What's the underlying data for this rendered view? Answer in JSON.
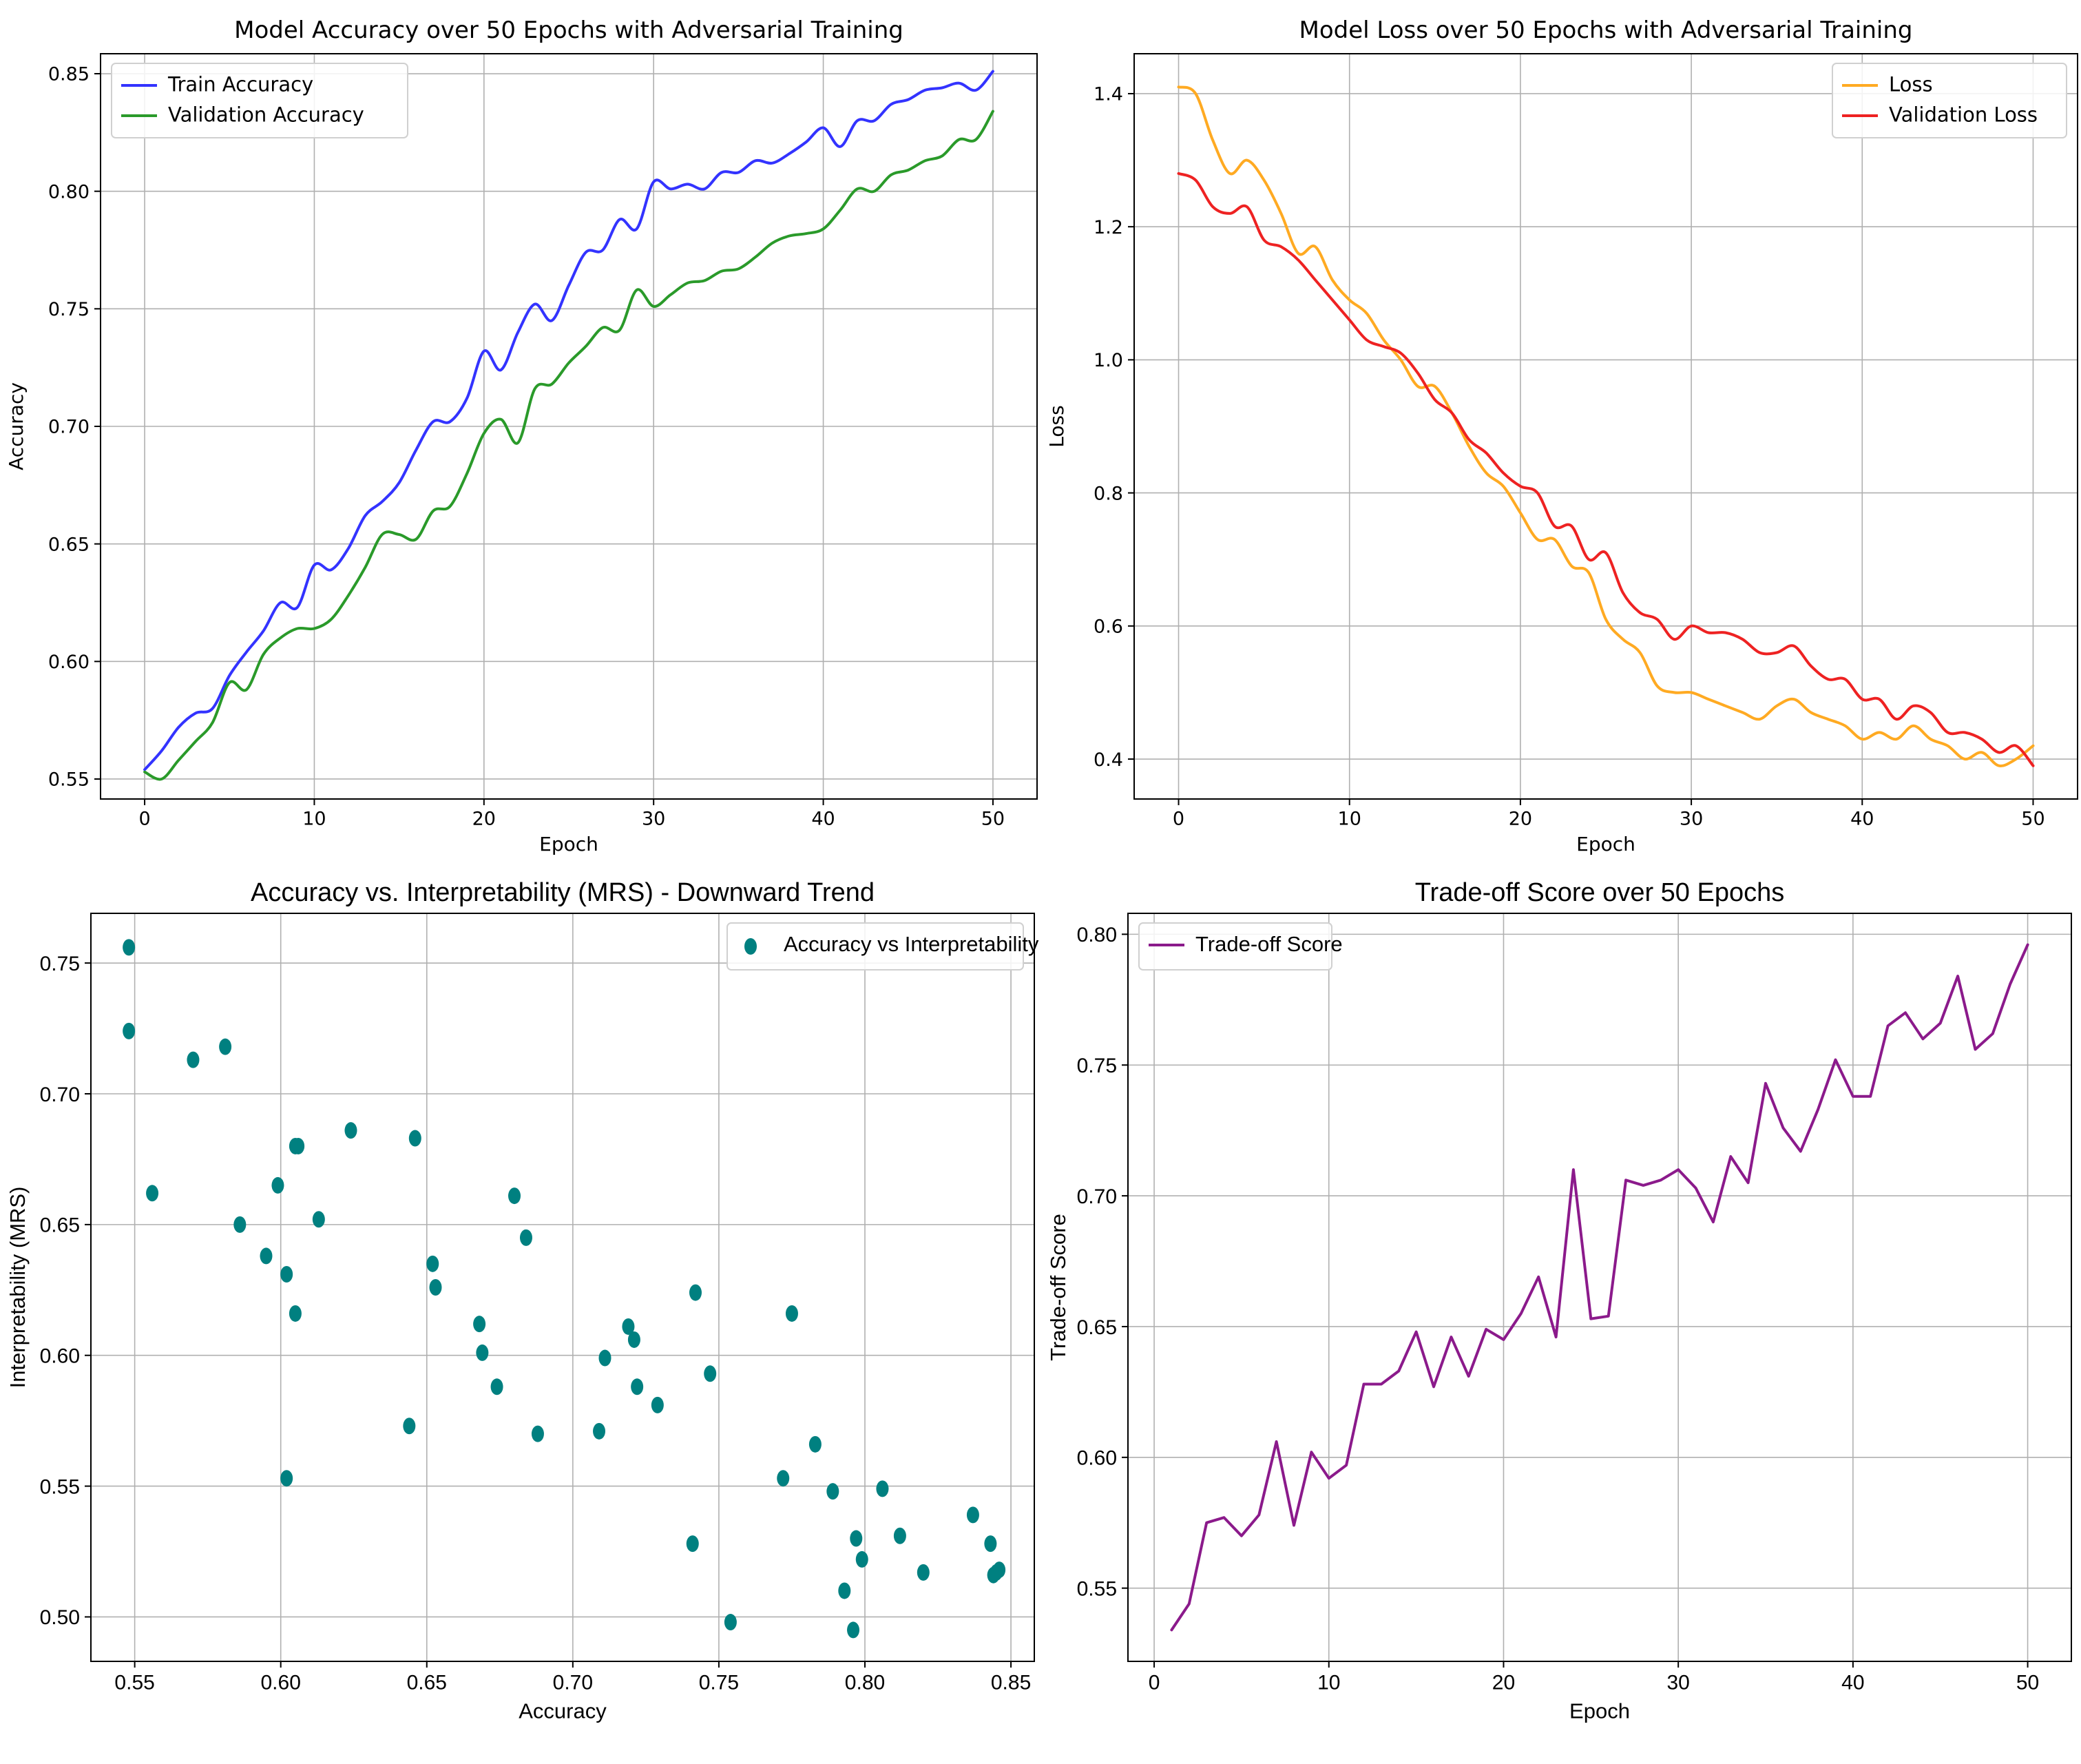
{
  "chart_data": [
    {
      "id": "accuracy",
      "type": "line",
      "title": "Model Accuracy over 50 Epochs with Adversarial Training",
      "xlabel": "Epoch",
      "ylabel": "Accuracy",
      "xlim": [
        -2.6,
        52.6
      ],
      "ylim": [
        0.5415,
        0.8585
      ],
      "xticks": [
        0,
        10,
        20,
        30,
        40,
        50
      ],
      "xtick_labels": [
        "0",
        "10",
        "20",
        "30",
        "40",
        "50"
      ],
      "yticks": [
        0.55,
        0.6,
        0.65,
        0.7,
        0.75,
        0.8,
        0.85
      ],
      "ytick_labels": [
        "0.55",
        "0.60",
        "0.65",
        "0.70",
        "0.75",
        "0.80",
        "0.85"
      ],
      "grid": true,
      "legend_position": "top-left",
      "x": [
        0,
        1,
        2,
        3,
        4,
        5,
        6,
        7,
        8,
        9,
        10,
        11,
        12,
        13,
        14,
        15,
        16,
        17,
        18,
        19,
        20,
        21,
        22,
        23,
        24,
        25,
        26,
        27,
        28,
        29,
        30,
        31,
        32,
        33,
        34,
        35,
        36,
        37,
        38,
        39,
        40,
        41,
        42,
        43,
        44,
        45,
        46,
        47,
        48,
        49,
        50
      ],
      "series": [
        {
          "name": "Train Accuracy",
          "color": "#3333ff",
          "values": [
            0.554,
            0.562,
            0.572,
            0.578,
            0.58,
            0.594,
            0.604,
            0.613,
            0.625,
            0.623,
            0.641,
            0.639,
            0.648,
            0.662,
            0.668,
            0.676,
            0.69,
            0.702,
            0.702,
            0.712,
            0.732,
            0.724,
            0.74,
            0.752,
            0.745,
            0.76,
            0.774,
            0.775,
            0.788,
            0.784,
            0.804,
            0.801,
            0.803,
            0.801,
            0.808,
            0.808,
            0.813,
            0.812,
            0.816,
            0.821,
            0.827,
            0.819,
            0.83,
            0.83,
            0.837,
            0.839,
            0.843,
            0.844,
            0.846,
            0.843,
            0.851
          ]
        },
        {
          "name": "Validation Accuracy",
          "color": "#2a9a2a",
          "values": [
            0.553,
            0.55,
            0.558,
            0.566,
            0.574,
            0.591,
            0.588,
            0.603,
            0.61,
            0.614,
            0.614,
            0.618,
            0.628,
            0.64,
            0.654,
            0.654,
            0.652,
            0.664,
            0.666,
            0.68,
            0.697,
            0.703,
            0.693,
            0.716,
            0.718,
            0.727,
            0.734,
            0.742,
            0.741,
            0.758,
            0.751,
            0.756,
            0.761,
            0.762,
            0.766,
            0.767,
            0.772,
            0.778,
            0.781,
            0.782,
            0.784,
            0.792,
            0.801,
            0.8,
            0.807,
            0.809,
            0.813,
            0.815,
            0.822,
            0.822,
            0.834
          ]
        }
      ]
    },
    {
      "id": "loss",
      "type": "line",
      "title": "Model Loss over 50 Epochs with Adversarial Training",
      "xlabel": "Epoch",
      "ylabel": "Loss",
      "xlim": [
        -2.6,
        52.6
      ],
      "ylim": [
        0.34,
        1.46
      ],
      "xticks": [
        0,
        10,
        20,
        30,
        40,
        50
      ],
      "xtick_labels": [
        "0",
        "10",
        "20",
        "30",
        "40",
        "50"
      ],
      "yticks": [
        0.4,
        0.6,
        0.8,
        1.0,
        1.2,
        1.4
      ],
      "ytick_labels": [
        "0.4",
        "0.6",
        "0.8",
        "1.0",
        "1.2",
        "1.4"
      ],
      "grid": true,
      "legend_position": "top-right",
      "x": [
        0,
        1,
        2,
        3,
        4,
        5,
        6,
        7,
        8,
        9,
        10,
        11,
        12,
        13,
        14,
        15,
        16,
        17,
        18,
        19,
        20,
        21,
        22,
        23,
        24,
        25,
        26,
        27,
        28,
        29,
        30,
        31,
        32,
        33,
        34,
        35,
        36,
        37,
        38,
        39,
        40,
        41,
        42,
        43,
        44,
        45,
        46,
        47,
        48,
        49,
        50
      ],
      "series": [
        {
          "name": "Loss",
          "color": "#ffaa22",
          "values": [
            1.41,
            1.4,
            1.33,
            1.28,
            1.3,
            1.27,
            1.22,
            1.16,
            1.17,
            1.12,
            1.09,
            1.07,
            1.03,
            1.0,
            0.96,
            0.96,
            0.92,
            0.87,
            0.83,
            0.81,
            0.77,
            0.73,
            0.73,
            0.69,
            0.68,
            0.61,
            0.58,
            0.56,
            0.51,
            0.5,
            0.5,
            0.49,
            0.48,
            0.47,
            0.46,
            0.48,
            0.49,
            0.47,
            0.46,
            0.45,
            0.43,
            0.44,
            0.43,
            0.45,
            0.43,
            0.42,
            0.4,
            0.41,
            0.39,
            0.4,
            0.42
          ]
        },
        {
          "name": "Validation Loss",
          "color": "#ee2222",
          "values": [
            1.28,
            1.27,
            1.23,
            1.22,
            1.23,
            1.18,
            1.17,
            1.15,
            1.12,
            1.09,
            1.06,
            1.03,
            1.02,
            1.01,
            0.98,
            0.94,
            0.92,
            0.88,
            0.86,
            0.83,
            0.81,
            0.8,
            0.75,
            0.75,
            0.7,
            0.71,
            0.65,
            0.62,
            0.61,
            0.58,
            0.6,
            0.59,
            0.59,
            0.58,
            0.56,
            0.56,
            0.57,
            0.54,
            0.52,
            0.52,
            0.49,
            0.49,
            0.46,
            0.48,
            0.47,
            0.44,
            0.44,
            0.43,
            0.41,
            0.42,
            0.39
          ]
        }
      ]
    },
    {
      "id": "scatter",
      "type": "scatter",
      "title": "Accuracy vs. Interpretability (MRS) - Downward Trend",
      "xlabel": "Accuracy",
      "ylabel": "Interpretability (MRS)",
      "xlim": [
        0.535,
        0.858
      ],
      "ylim": [
        0.483,
        0.769
      ],
      "xticks": [
        0.55,
        0.6,
        0.65,
        0.7,
        0.75,
        0.8,
        0.85
      ],
      "xtick_labels": [
        "0.55",
        "0.60",
        "0.65",
        "0.70",
        "0.75",
        "0.80",
        "0.85"
      ],
      "yticks": [
        0.5,
        0.55,
        0.6,
        0.65,
        0.7,
        0.75
      ],
      "ytick_labels": [
        "0.50",
        "0.55",
        "0.60",
        "0.65",
        "0.70",
        "0.75"
      ],
      "grid": true,
      "legend_position": "top-right",
      "series": [
        {
          "name": "Accuracy vs Interpretability",
          "color": "#008080",
          "x": [
            0.548,
            0.548,
            0.556,
            0.57,
            0.581,
            0.586,
            0.595,
            0.599,
            0.602,
            0.605,
            0.606,
            0.613,
            0.624,
            0.646,
            0.652,
            0.653,
            0.668,
            0.669,
            0.674,
            0.68,
            0.684,
            0.688,
            0.644,
            0.602,
            0.605,
            0.709,
            0.711,
            0.719,
            0.721,
            0.722,
            0.729,
            0.741,
            0.742,
            0.747,
            0.754,
            0.772,
            0.775,
            0.783,
            0.789,
            0.793,
            0.796,
            0.797,
            0.799,
            0.806,
            0.812,
            0.82,
            0.837,
            0.843,
            0.844,
            0.845,
            0.846
          ],
          "y": [
            0.756,
            0.724,
            0.662,
            0.713,
            0.718,
            0.65,
            0.638,
            0.665,
            0.631,
            0.616,
            0.68,
            0.652,
            0.686,
            0.683,
            0.635,
            0.626,
            0.612,
            0.601,
            0.588,
            0.661,
            0.645,
            0.57,
            0.573,
            0.553,
            0.68,
            0.571,
            0.599,
            0.611,
            0.606,
            0.588,
            0.581,
            0.528,
            0.624,
            0.593,
            0.498,
            0.553,
            0.616,
            0.566,
            0.548,
            0.51,
            0.495,
            0.53,
            0.522,
            0.549,
            0.531,
            0.517,
            0.539,
            0.528,
            0.516,
            0.517,
            0.518
          ]
        }
      ]
    },
    {
      "id": "tradeoff",
      "type": "line",
      "title": "Trade-off Score over 50 Epochs",
      "xlabel": "Epoch",
      "ylabel": "Trade-off Score",
      "xlim": [
        -1.5,
        52.5
      ],
      "ylim": [
        0.522,
        0.808
      ],
      "xticks": [
        0,
        10,
        20,
        30,
        40,
        50
      ],
      "xtick_labels": [
        "0",
        "10",
        "20",
        "30",
        "40",
        "50"
      ],
      "yticks": [
        0.55,
        0.6,
        0.65,
        0.7,
        0.75,
        0.8
      ],
      "ytick_labels": [
        "0.55",
        "0.60",
        "0.65",
        "0.70",
        "0.75",
        "0.80"
      ],
      "grid": true,
      "legend_position": "top-left",
      "x": [
        1,
        2,
        3,
        4,
        5,
        6,
        7,
        8,
        9,
        10,
        11,
        12,
        13,
        14,
        15,
        16,
        17,
        18,
        19,
        20,
        21,
        22,
        23,
        24,
        25,
        26,
        27,
        28,
        29,
        30,
        31,
        32,
        33,
        34,
        35,
        36,
        37,
        38,
        39,
        40,
        41,
        42,
        43,
        44,
        45,
        46,
        47,
        48,
        49,
        50
      ],
      "series": [
        {
          "name": "Trade-off Score",
          "color": "#8b1a8b",
          "values": [
            0.534,
            0.544,
            0.575,
            0.577,
            0.57,
            0.578,
            0.606,
            0.574,
            0.602,
            0.592,
            0.597,
            0.628,
            0.628,
            0.633,
            0.648,
            0.627,
            0.646,
            0.631,
            0.649,
            0.645,
            0.655,
            0.669,
            0.646,
            0.71,
            0.653,
            0.654,
            0.706,
            0.704,
            0.706,
            0.71,
            0.703,
            0.69,
            0.715,
            0.705,
            0.743,
            0.726,
            0.717,
            0.733,
            0.752,
            0.738,
            0.738,
            0.765,
            0.77,
            0.76,
            0.766,
            0.784,
            0.756,
            0.762,
            0.781,
            0.796
          ]
        }
      ]
    }
  ]
}
